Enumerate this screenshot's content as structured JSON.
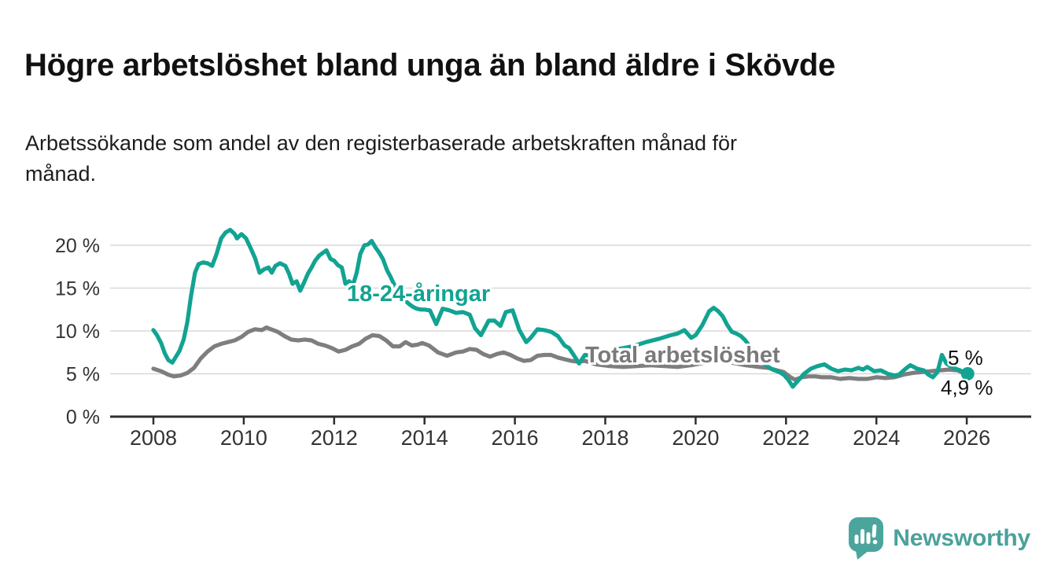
{
  "header": {
    "title": "Högre arbetslöshet bland unga än bland äldre i Skövde",
    "subtitle": "Arbetssökande som andel av den registerbaserade arbetskraften månad för\nmånad."
  },
  "chart_data": {
    "type": "line",
    "unit": "%",
    "grid": "horizontal",
    "x_axis": {
      "tick_values": [
        2008,
        2010,
        2012,
        2014,
        2016,
        2018,
        2020,
        2022,
        2024,
        2026
      ],
      "tick_labels": [
        "2008",
        "2010",
        "2012",
        "2014",
        "2016",
        "2018",
        "2020",
        "2022",
        "2024",
        "2026"
      ],
      "range_years": [
        2007.0,
        2027.4
      ]
    },
    "y_axis": {
      "tick_values": [
        0,
        5,
        10,
        15,
        20
      ],
      "tick_labels": [
        "0 %",
        "5 %",
        "10 %",
        "15 %",
        "20 %"
      ],
      "range": [
        0,
        23
      ]
    },
    "series": [
      {
        "name": "Total arbetslöshet",
        "color": "#7e7e7e",
        "end_value": 4.9,
        "end_label": "4,9 %",
        "points": [
          [
            2008.0,
            5.6
          ],
          [
            2008.17,
            5.3
          ],
          [
            2008.33,
            4.9
          ],
          [
            2008.45,
            4.7
          ],
          [
            2008.6,
            4.8
          ],
          [
            2008.75,
            5.1
          ],
          [
            2008.9,
            5.7
          ],
          [
            2009.05,
            6.8
          ],
          [
            2009.2,
            7.6
          ],
          [
            2009.35,
            8.2
          ],
          [
            2009.5,
            8.5
          ],
          [
            2009.65,
            8.7
          ],
          [
            2009.8,
            8.9
          ],
          [
            2009.95,
            9.3
          ],
          [
            2010.1,
            9.9
          ],
          [
            2010.25,
            10.2
          ],
          [
            2010.4,
            10.1
          ],
          [
            2010.5,
            10.4
          ],
          [
            2010.6,
            10.2
          ],
          [
            2010.75,
            9.9
          ],
          [
            2010.9,
            9.4
          ],
          [
            2011.05,
            9.0
          ],
          [
            2011.2,
            8.9
          ],
          [
            2011.35,
            9.0
          ],
          [
            2011.5,
            8.9
          ],
          [
            2011.65,
            8.5
          ],
          [
            2011.8,
            8.3
          ],
          [
            2011.95,
            8.0
          ],
          [
            2012.1,
            7.6
          ],
          [
            2012.25,
            7.8
          ],
          [
            2012.4,
            8.2
          ],
          [
            2012.55,
            8.5
          ],
          [
            2012.7,
            9.1
          ],
          [
            2012.85,
            9.5
          ],
          [
            2013.0,
            9.4
          ],
          [
            2013.15,
            8.9
          ],
          [
            2013.3,
            8.2
          ],
          [
            2013.45,
            8.2
          ],
          [
            2013.58,
            8.7
          ],
          [
            2013.72,
            8.3
          ],
          [
            2013.85,
            8.4
          ],
          [
            2013.95,
            8.6
          ],
          [
            2014.1,
            8.3
          ],
          [
            2014.3,
            7.5
          ],
          [
            2014.5,
            7.1
          ],
          [
            2014.7,
            7.5
          ],
          [
            2014.85,
            7.6
          ],
          [
            2015.0,
            7.9
          ],
          [
            2015.15,
            7.8
          ],
          [
            2015.3,
            7.3
          ],
          [
            2015.45,
            7.0
          ],
          [
            2015.6,
            7.3
          ],
          [
            2015.75,
            7.5
          ],
          [
            2015.9,
            7.2
          ],
          [
            2016.05,
            6.8
          ],
          [
            2016.2,
            6.5
          ],
          [
            2016.35,
            6.6
          ],
          [
            2016.5,
            7.1
          ],
          [
            2016.65,
            7.2
          ],
          [
            2016.8,
            7.2
          ],
          [
            2016.95,
            6.9
          ],
          [
            2017.1,
            6.7
          ],
          [
            2017.25,
            6.5
          ],
          [
            2017.4,
            6.4
          ],
          [
            2017.55,
            6.5
          ],
          [
            2017.8,
            6.1
          ],
          [
            2018.1,
            5.9
          ],
          [
            2018.4,
            5.8
          ],
          [
            2018.7,
            5.9
          ],
          [
            2019.0,
            6.0
          ],
          [
            2019.3,
            5.9
          ],
          [
            2019.6,
            5.8
          ],
          [
            2019.9,
            6.0
          ],
          [
            2020.2,
            6.3
          ],
          [
            2020.5,
            6.5
          ],
          [
            2020.8,
            6.3
          ],
          [
            2021.1,
            6.0
          ],
          [
            2021.4,
            5.8
          ],
          [
            2021.6,
            5.7
          ],
          [
            2021.8,
            5.4
          ],
          [
            2021.95,
            5.2
          ],
          [
            2022.1,
            4.6
          ],
          [
            2022.2,
            4.3
          ],
          [
            2022.35,
            4.6
          ],
          [
            2022.5,
            4.7
          ],
          [
            2022.65,
            4.7
          ],
          [
            2022.8,
            4.6
          ],
          [
            2023.0,
            4.6
          ],
          [
            2023.2,
            4.4
          ],
          [
            2023.4,
            4.5
          ],
          [
            2023.6,
            4.4
          ],
          [
            2023.8,
            4.4
          ],
          [
            2024.0,
            4.6
          ],
          [
            2024.2,
            4.5
          ],
          [
            2024.4,
            4.6
          ],
          [
            2024.6,
            4.9
          ],
          [
            2024.8,
            5.1
          ],
          [
            2025.0,
            5.2
          ],
          [
            2025.2,
            5.3
          ],
          [
            2025.4,
            5.4
          ],
          [
            2025.6,
            5.5
          ],
          [
            2025.8,
            5.4
          ],
          [
            2026.0,
            4.9
          ]
        ]
      },
      {
        "name": "18-24-åringar",
        "color": "#12a392",
        "end_value": 5.0,
        "end_label": "5 %",
        "points": [
          [
            2008.0,
            10.1
          ],
          [
            2008.08,
            9.5
          ],
          [
            2008.17,
            8.6
          ],
          [
            2008.25,
            7.4
          ],
          [
            2008.33,
            6.6
          ],
          [
            2008.42,
            6.3
          ],
          [
            2008.5,
            7.0
          ],
          [
            2008.58,
            7.7
          ],
          [
            2008.67,
            9.0
          ],
          [
            2008.75,
            11.0
          ],
          [
            2008.83,
            14.0
          ],
          [
            2008.92,
            16.8
          ],
          [
            2009.0,
            17.8
          ],
          [
            2009.1,
            18.0
          ],
          [
            2009.2,
            17.9
          ],
          [
            2009.3,
            17.6
          ],
          [
            2009.4,
            19.0
          ],
          [
            2009.5,
            20.8
          ],
          [
            2009.6,
            21.5
          ],
          [
            2009.7,
            21.8
          ],
          [
            2009.8,
            21.3
          ],
          [
            2009.85,
            20.8
          ],
          [
            2009.95,
            21.3
          ],
          [
            2010.05,
            20.8
          ],
          [
            2010.15,
            19.7
          ],
          [
            2010.25,
            18.5
          ],
          [
            2010.35,
            16.8
          ],
          [
            2010.45,
            17.2
          ],
          [
            2010.55,
            17.4
          ],
          [
            2010.62,
            16.8
          ],
          [
            2010.7,
            17.6
          ],
          [
            2010.8,
            17.9
          ],
          [
            2010.92,
            17.6
          ],
          [
            2011.0,
            16.7
          ],
          [
            2011.08,
            15.5
          ],
          [
            2011.17,
            15.8
          ],
          [
            2011.25,
            14.7
          ],
          [
            2011.33,
            15.6
          ],
          [
            2011.42,
            16.7
          ],
          [
            2011.5,
            17.4
          ],
          [
            2011.58,
            18.2
          ],
          [
            2011.67,
            18.8
          ],
          [
            2011.75,
            19.1
          ],
          [
            2011.83,
            19.4
          ],
          [
            2011.92,
            18.4
          ],
          [
            2012.0,
            18.2
          ],
          [
            2012.08,
            17.7
          ],
          [
            2012.17,
            17.4
          ],
          [
            2012.25,
            15.5
          ],
          [
            2012.33,
            15.8
          ],
          [
            2012.42,
            15.4
          ],
          [
            2012.5,
            16.8
          ],
          [
            2012.58,
            19.0
          ],
          [
            2012.67,
            20.0
          ],
          [
            2012.75,
            20.1
          ],
          [
            2012.83,
            20.5
          ],
          [
            2012.92,
            19.7
          ],
          [
            2013.0,
            19.1
          ],
          [
            2013.08,
            18.4
          ],
          [
            2013.17,
            17.1
          ],
          [
            2013.25,
            16.3
          ],
          [
            2013.33,
            15.4
          ],
          [
            2013.42,
            14.6
          ],
          [
            2013.5,
            14.0
          ],
          [
            2013.58,
            13.5
          ],
          [
            2013.67,
            13.1
          ],
          [
            2013.75,
            12.8
          ],
          [
            2013.83,
            12.6
          ],
          [
            2013.92,
            12.5
          ],
          [
            2014.0,
            12.5
          ],
          [
            2014.12,
            12.4
          ],
          [
            2014.26,
            10.8
          ],
          [
            2014.4,
            12.6
          ],
          [
            2014.55,
            12.4
          ],
          [
            2014.7,
            12.1
          ],
          [
            2014.85,
            12.2
          ],
          [
            2015.0,
            11.9
          ],
          [
            2015.12,
            10.3
          ],
          [
            2015.25,
            9.5
          ],
          [
            2015.42,
            11.2
          ],
          [
            2015.55,
            11.2
          ],
          [
            2015.68,
            10.6
          ],
          [
            2015.8,
            12.2
          ],
          [
            2015.95,
            12.4
          ],
          [
            2016.1,
            10.1
          ],
          [
            2016.25,
            8.7
          ],
          [
            2016.35,
            9.2
          ],
          [
            2016.5,
            10.2
          ],
          [
            2016.65,
            10.1
          ],
          [
            2016.8,
            9.9
          ],
          [
            2016.95,
            9.4
          ],
          [
            2017.1,
            8.3
          ],
          [
            2017.2,
            8.0
          ],
          [
            2017.3,
            7.2
          ],
          [
            2017.42,
            6.2
          ],
          [
            2017.55,
            7.2
          ],
          [
            2017.7,
            7.1
          ],
          [
            2018.0,
            7.6
          ],
          [
            2018.3,
            7.9
          ],
          [
            2018.6,
            8.2
          ],
          [
            2018.9,
            8.7
          ],
          [
            2019.2,
            9.1
          ],
          [
            2019.45,
            9.5
          ],
          [
            2019.6,
            9.7
          ],
          [
            2019.75,
            10.1
          ],
          [
            2019.9,
            9.2
          ],
          [
            2020.0,
            9.5
          ],
          [
            2020.15,
            10.7
          ],
          [
            2020.3,
            12.3
          ],
          [
            2020.4,
            12.7
          ],
          [
            2020.5,
            12.3
          ],
          [
            2020.6,
            11.7
          ],
          [
            2020.7,
            10.7
          ],
          [
            2020.8,
            9.9
          ],
          [
            2020.9,
            9.7
          ],
          [
            2021.0,
            9.4
          ],
          [
            2021.1,
            8.9
          ],
          [
            2021.25,
            7.8
          ],
          [
            2021.4,
            6.8
          ],
          [
            2021.55,
            6.0
          ],
          [
            2021.7,
            5.5
          ],
          [
            2021.85,
            5.2
          ],
          [
            2021.95,
            4.9
          ],
          [
            2022.05,
            4.3
          ],
          [
            2022.15,
            3.5
          ],
          [
            2022.25,
            4.1
          ],
          [
            2022.4,
            5.0
          ],
          [
            2022.55,
            5.6
          ],
          [
            2022.7,
            5.9
          ],
          [
            2022.85,
            6.1
          ],
          [
            2023.0,
            5.6
          ],
          [
            2023.15,
            5.3
          ],
          [
            2023.3,
            5.5
          ],
          [
            2023.45,
            5.4
          ],
          [
            2023.6,
            5.7
          ],
          [
            2023.7,
            5.5
          ],
          [
            2023.8,
            5.8
          ],
          [
            2023.95,
            5.3
          ],
          [
            2024.1,
            5.4
          ],
          [
            2024.25,
            5.0
          ],
          [
            2024.4,
            4.8
          ],
          [
            2024.5,
            4.9
          ],
          [
            2024.65,
            5.6
          ],
          [
            2024.75,
            6.0
          ],
          [
            2024.9,
            5.6
          ],
          [
            2025.05,
            5.4
          ],
          [
            2025.15,
            4.9
          ],
          [
            2025.25,
            4.6
          ],
          [
            2025.35,
            5.2
          ],
          [
            2025.45,
            7.2
          ],
          [
            2025.55,
            6.2
          ],
          [
            2025.7,
            5.7
          ],
          [
            2025.85,
            5.4
          ],
          [
            2026.0,
            5.0
          ]
        ]
      }
    ]
  },
  "branding": {
    "logo_text": "Newsworthy",
    "logo_icon": "speech-bubble-bar-chart-icon",
    "logo_color": "#4ba19b"
  },
  "colors": {
    "young_line": "#12a392",
    "total_line": "#7e7e7e",
    "gridline": "#d8d8d8",
    "axis": "#2e2e2e",
    "axis_text": "#333333",
    "end_label_text": "#111111"
  }
}
